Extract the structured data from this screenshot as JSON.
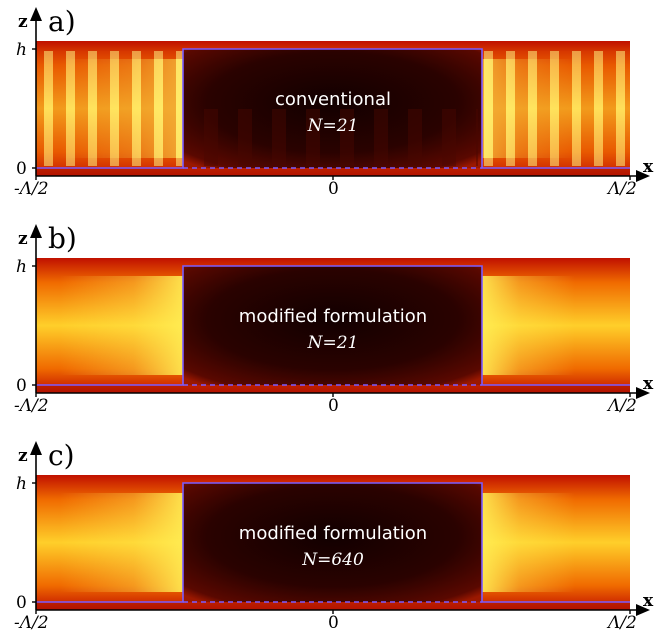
{
  "colors": {
    "dark": "#1c0000",
    "red": "#c01000",
    "orange": "#f06a00",
    "yellow": "#ffee55",
    "outline": "#7a5cff",
    "axis": "#000000"
  },
  "axes": {
    "x_name": "x",
    "z_name": "z",
    "x_ticks": [
      "-Λ/2",
      "0",
      "Λ/2"
    ],
    "z_ticks": [
      "h",
      "0"
    ]
  },
  "panels": [
    {
      "label": "a)",
      "title": "conventional",
      "n_label": "N=21",
      "style": "oscillating"
    },
    {
      "label": "b)",
      "title": "modified formulation",
      "n_label": "N=21",
      "style": "smooth"
    },
    {
      "label": "c)",
      "title": "modified formulation",
      "n_label": "N=640",
      "style": "smooth"
    }
  ]
}
